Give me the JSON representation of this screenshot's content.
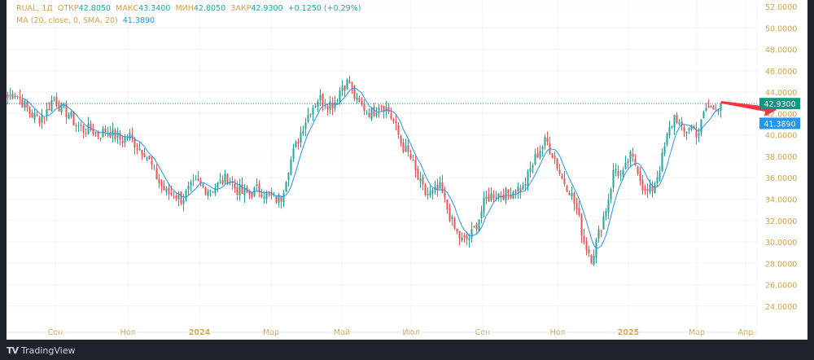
{
  "legend": {
    "symbol": "RUAL, 1Д",
    "open_label": "ОТКР",
    "open": "42.8050",
    "high_label": "МАКС",
    "high": "43.3400",
    "low_label": "МИН",
    "low": "42.8050",
    "close_label": "ЗАКР",
    "close": "42.9300",
    "change": "+0.1250 (+0.29%)",
    "ma_label": "MA (20, close, 0, SMA, 20)",
    "ma_value": "41.3890"
  },
  "colors": {
    "up": "#26a69a",
    "down": "#ef5350",
    "ma": "#2196f3",
    "axis_text": "#d4a24a",
    "last_price": "#089981",
    "arrow": "#f23645"
  },
  "brand": "TradingView",
  "chart_data": {
    "type": "candlestick",
    "y_ticks": [
      "52.0000",
      "50.0000",
      "48.0000",
      "46.0000",
      "44.0000",
      "42.0000",
      "40.0000",
      "38.0000",
      "36.0000",
      "34.0000",
      "32.0000",
      "30.0000",
      "28.0000",
      "26.0000",
      "24.0000"
    ],
    "ylim": [
      23,
      52.5
    ],
    "x_ticks": [
      "Сен",
      "Ноя",
      "2024",
      "Мар",
      "Май",
      "Июл",
      "Сен",
      "Ноя",
      "2025",
      "Мар",
      "Апр"
    ],
    "last_price_label": "42.9300",
    "ma_price_label": "41.3890",
    "last_price": 42.93,
    "ma_last": 41.389,
    "close_keypoints": [
      43.5,
      44,
      43,
      42,
      41.5,
      42,
      43.5,
      42.5,
      42,
      41,
      40.5,
      40.5,
      40,
      40.5,
      40,
      39.5,
      40,
      39,
      38.5,
      37,
      35.5,
      34.5,
      34.5,
      34,
      35,
      35.5,
      35,
      35,
      35.5,
      36,
      35,
      34.5,
      34.5,
      35,
      34.5,
      34,
      34,
      37,
      39,
      41,
      42.5,
      43.5,
      43,
      43,
      44.5,
      45,
      43,
      42.5,
      42,
      43,
      42.5,
      41,
      39,
      38,
      36,
      34.5,
      34.5,
      35,
      33,
      31,
      30,
      30.5,
      32,
      34,
      34.5,
      34.5,
      34.5,
      35,
      35,
      37,
      38.5,
      39.5,
      38,
      36,
      35,
      33,
      30,
      28.5,
      31,
      33.5,
      37,
      36,
      38,
      37,
      34.5,
      35,
      37,
      40,
      42,
      40,
      41,
      40,
      42.5,
      42.5,
      42.93
    ]
  }
}
